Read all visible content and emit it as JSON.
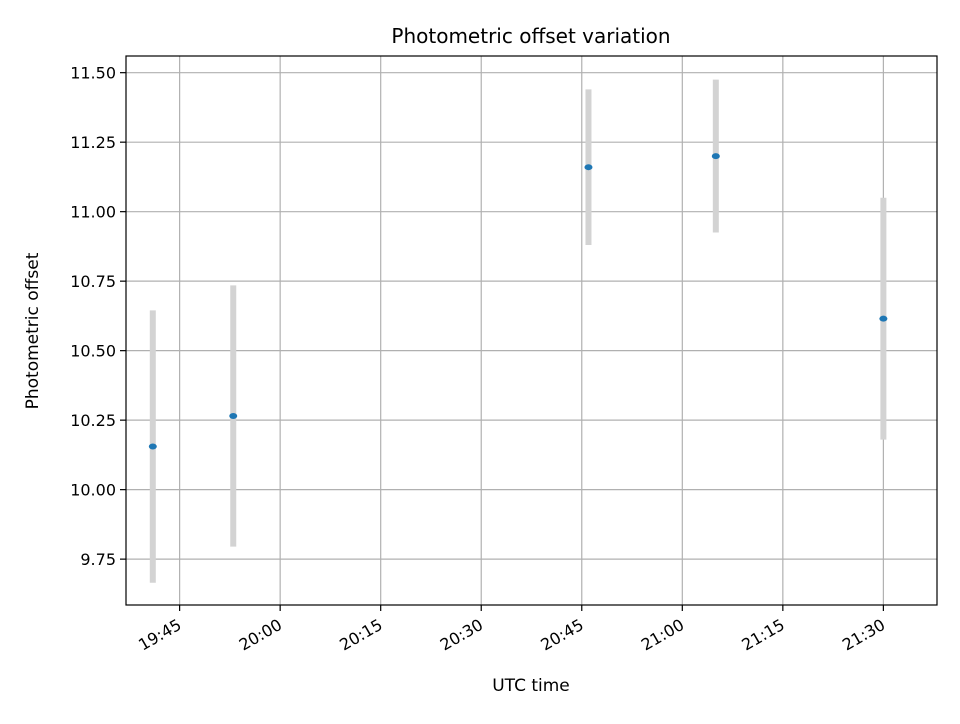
{
  "chart_data": {
    "type": "scatter",
    "title": "Photometric offset variation",
    "xlabel": "UTC time",
    "ylabel": "Photometric offset",
    "x_axis_type": "time",
    "xlim": [
      "19:37",
      "21:38"
    ],
    "ylim": [
      9.585,
      11.56
    ],
    "x_ticks": [
      "19:45",
      "20:00",
      "20:15",
      "20:30",
      "20:45",
      "21:00",
      "21:15",
      "21:30"
    ],
    "y_ticks": [
      9.75,
      10.0,
      10.25,
      10.5,
      10.75,
      11.0,
      11.25,
      11.5
    ],
    "y_tick_labels": [
      "9.75",
      "10.00",
      "10.25",
      "10.50",
      "10.75",
      "11.00",
      "11.25",
      "11.50"
    ],
    "grid": true,
    "legend": "none",
    "series": [
      {
        "x": [
          "19:41",
          "19:53",
          "20:46",
          "21:05",
          "21:30"
        ],
        "y": [
          10.155,
          10.265,
          11.16,
          11.2,
          10.615
        ],
        "yerr": [
          0.49,
          0.47,
          0.28,
          0.275,
          0.435
        ]
      }
    ],
    "colors": {
      "marker": "#1f77b4",
      "errorbar": "#d3d3d3",
      "grid": "#b0b0b0"
    }
  }
}
